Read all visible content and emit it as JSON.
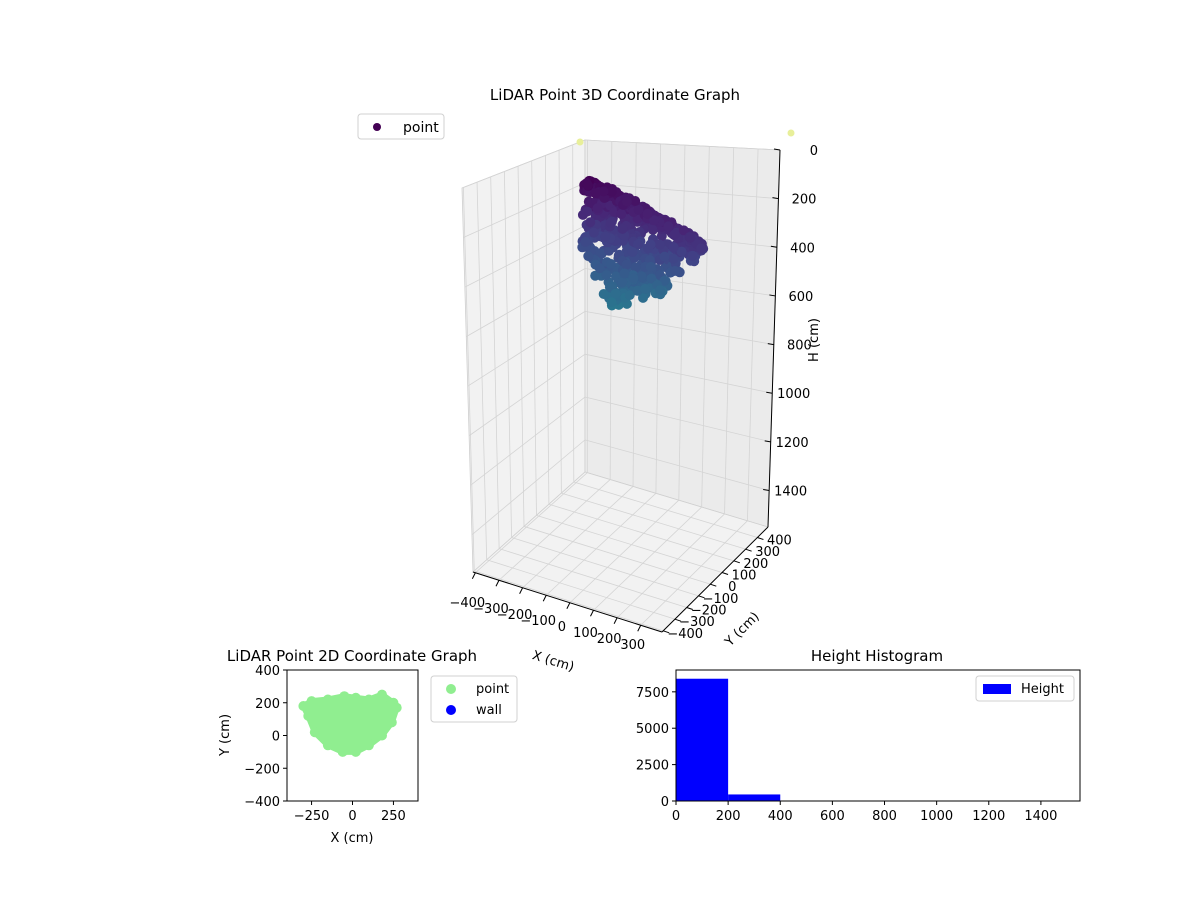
{
  "chart_data": [
    {
      "type": "scatter3d",
      "title": "LiDAR Point 3D Coordinate Graph",
      "xlabel": "X (cm)",
      "ylabel": "Y (cm)",
      "zlabel": "H (cm)",
      "x_ticks": [
        "−400",
        "−300",
        "−200",
        "−100",
        "0",
        "100",
        "200",
        "300"
      ],
      "y_ticks": [
        "−400",
        "−300",
        "−200",
        "−100",
        "0",
        "100",
        "200",
        "300",
        "400"
      ],
      "z_ticks": [
        "0",
        "200",
        "400",
        "600",
        "800",
        "1000",
        "1200",
        "1400"
      ],
      "zlim": [
        0,
        1550
      ],
      "z_inverted": true,
      "legend": {
        "placement": "top-left",
        "entries": [
          "point"
        ]
      },
      "colormap": "viridis",
      "series": [
        {
          "name": "point",
          "description_shape": "dense cluster of points near the top (H 0–350 cm)",
          "points": [
            {
              "x": -260,
              "y": 180,
              "h": 20
            },
            {
              "x": -200,
              "y": 200,
              "h": 40
            },
            {
              "x": -100,
              "y": 210,
              "h": 60
            },
            {
              "x": 0,
              "y": 200,
              "h": 80
            },
            {
              "x": 100,
              "y": 190,
              "h": 100
            },
            {
              "x": 200,
              "y": 190,
              "h": 120
            },
            {
              "x": 260,
              "y": 170,
              "h": 140
            },
            {
              "x": -200,
              "y": 60,
              "h": 200
            },
            {
              "x": 0,
              "y": 20,
              "h": 260
            },
            {
              "x": 150,
              "y": 40,
              "h": 300
            },
            {
              "x": 0,
              "y": -80,
              "h": 340
            }
          ]
        }
      ],
      "grid": true
    },
    {
      "type": "scatter",
      "title": "LiDAR Point 2D Coordinate Graph",
      "xlabel": "X (cm)",
      "ylabel": "Y (cm)",
      "xlim": [
        -400,
        400
      ],
      "ylim": [
        -400,
        400
      ],
      "x_ticks": [
        -250,
        0,
        250
      ],
      "y_ticks": [
        -400,
        -200,
        0,
        200,
        400
      ],
      "legend": {
        "placement": "outside-right",
        "entries": [
          "point",
          "wall"
        ]
      },
      "series": [
        {
          "name": "point",
          "color": "#90ee90",
          "outline": [
            [
              -300,
              180
            ],
            [
              -250,
              210
            ],
            [
              -150,
              220
            ],
            [
              -50,
              240
            ],
            [
              20,
              230
            ],
            [
              100,
              220
            ],
            [
              180,
              250
            ],
            [
              250,
              200
            ],
            [
              270,
              170
            ],
            [
              240,
              80
            ],
            [
              180,
              0
            ],
            [
              100,
              -60
            ],
            [
              20,
              -100
            ],
            [
              -60,
              -100
            ],
            [
              -150,
              -60
            ],
            [
              -230,
              20
            ],
            [
              -270,
              120
            ]
          ]
        },
        {
          "name": "wall",
          "color": "#0000ff",
          "points": []
        }
      ]
    },
    {
      "type": "bar",
      "title": "Height Histogram",
      "xlim": [
        0,
        1550
      ],
      "ylim": [
        0,
        9000
      ],
      "x_ticks": [
        0,
        200,
        400,
        600,
        800,
        1000,
        1200,
        1400
      ],
      "y_ticks": [
        0,
        2500,
        5000,
        7500
      ],
      "y_tick_labels": [
        "0",
        "2500",
        "5000",
        "7500"
      ],
      "legend": {
        "placement": "top-right",
        "entries": [
          "Height"
        ]
      },
      "series": [
        {
          "name": "Height",
          "color": "#0000ff",
          "bins": [
            {
              "from": 0,
              "to": 200,
              "count": 8400
            },
            {
              "from": 200,
              "to": 400,
              "count": 450
            },
            {
              "from": 400,
              "to": 600,
              "count": 0
            },
            {
              "from": 600,
              "to": 800,
              "count": 0
            },
            {
              "from": 800,
              "to": 1000,
              "count": 0
            },
            {
              "from": 1000,
              "to": 1200,
              "count": 0
            },
            {
              "from": 1200,
              "to": 1400,
              "count": 0
            },
            {
              "from": 1400,
              "to": 1550,
              "count": 2
            }
          ]
        }
      ]
    }
  ]
}
